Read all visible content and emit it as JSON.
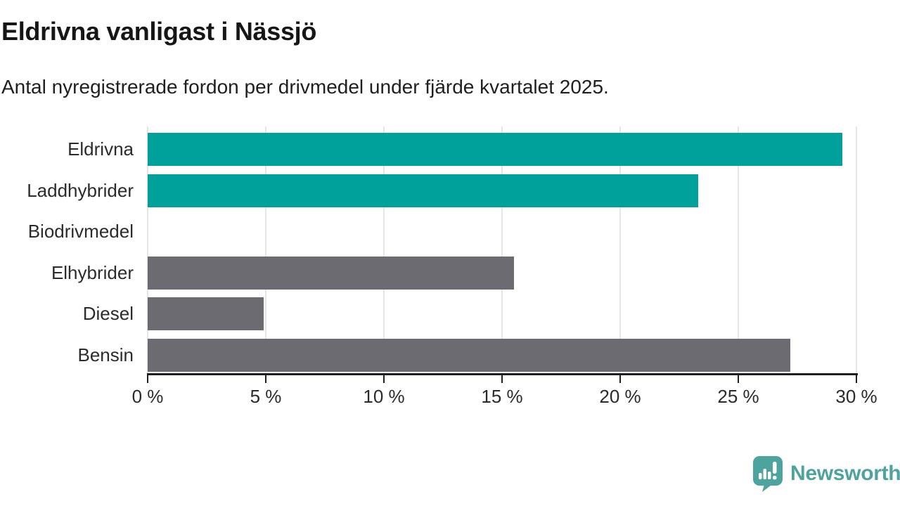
{
  "header": {
    "title": "Eldrivna vanligast i Nässjö",
    "subtitle": "Antal nyregistrerade fordon per drivmedel under fjärde kvartalet 2025."
  },
  "chart_data": {
    "type": "bar",
    "orientation": "horizontal",
    "title": "Eldrivna vanligast i Nässjö",
    "subtitle": "Antal nyregistrerade fordon per drivmedel under fjärde kvartalet 2025.",
    "categories": [
      "Eldrivna",
      "Laddhybrider",
      "Biodrivmedel",
      "Elhybrider",
      "Diesel",
      "Bensin"
    ],
    "values": [
      29.4,
      23.3,
      0,
      15.5,
      4.9,
      27.2
    ],
    "unit": "%",
    "bar_colors": [
      "#00a19a",
      "#00a19a",
      "#6b6b71",
      "#6b6b71",
      "#6b6b71",
      "#6b6b71"
    ],
    "xlim": [
      0,
      30
    ],
    "x_ticks": [
      0,
      5,
      10,
      15,
      20,
      25,
      30
    ],
    "x_tick_labels": [
      "0 %",
      "5 %",
      "10 %",
      "15 %",
      "20 %",
      "25 %",
      "30 %"
    ],
    "grid": "vertical",
    "legend_position": "none"
  },
  "footer": {
    "brand": "Newsworthy",
    "logo_icon": "bar-chart-speech-bubble"
  },
  "colors": {
    "highlight": "#00a19a",
    "neutral_bar": "#6b6b71",
    "gridline": "#e5e5e5",
    "axis": "#1f1f1f",
    "text": "#2b2b2b",
    "brand": "#4da39d"
  }
}
